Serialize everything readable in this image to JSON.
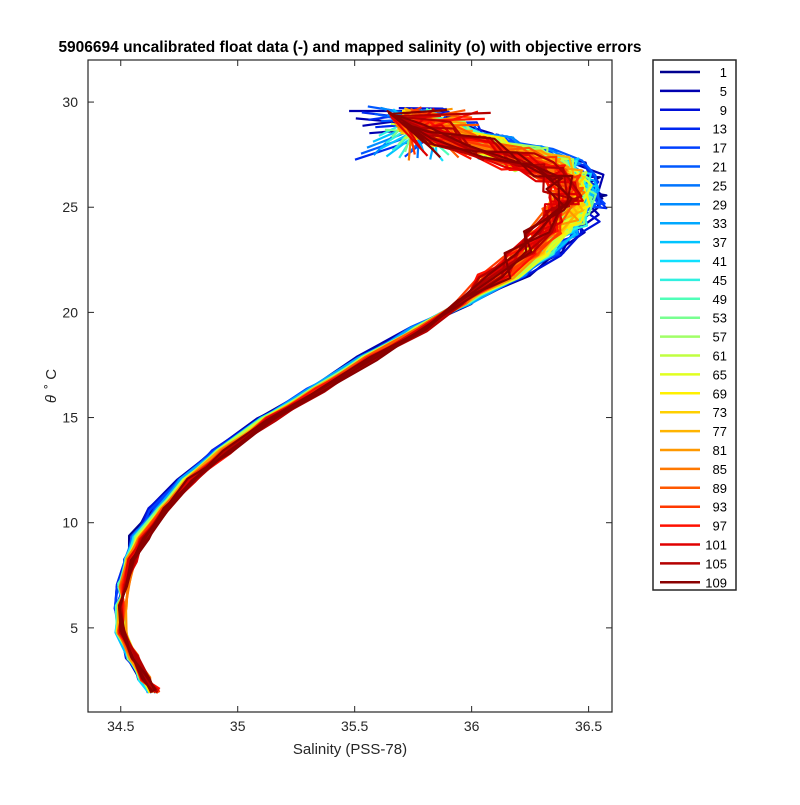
{
  "chart_data": {
    "type": "line",
    "title": "5906694 uncalibrated float data (-) and mapped salinity (o) with objective errors",
    "xlabel": "Salinity (PSS-78)",
    "ylabel_symbol": "θ",
    "ylabel_unit": "˚ C",
    "xlim": [
      34.36,
      36.6
    ],
    "ylim": [
      1.0,
      32.0
    ],
    "xticks": [
      34.5,
      35,
      35.5,
      36,
      36.5
    ],
    "yticks": [
      5,
      10,
      15,
      20,
      25,
      30
    ],
    "xtick_labels": [
      "34.5",
      "35",
      "35.5",
      "36",
      "36.5"
    ],
    "ytick_labels": [
      "5",
      "10",
      "15",
      "20",
      "25",
      "30"
    ],
    "grid": false,
    "legend_placement": "outside-right",
    "series": [
      {
        "name": "1",
        "color": "#00008F"
      },
      {
        "name": "5",
        "color": "#0000B0"
      },
      {
        "name": "9",
        "color": "#0010D8"
      },
      {
        "name": "13",
        "color": "#0028F0"
      },
      {
        "name": "17",
        "color": "#0040FF"
      },
      {
        "name": "21",
        "color": "#0058FF"
      },
      {
        "name": "25",
        "color": "#0074FF"
      },
      {
        "name": "29",
        "color": "#008CFF"
      },
      {
        "name": "33",
        "color": "#00A8FF"
      },
      {
        "name": "37",
        "color": "#00C4FF"
      },
      {
        "name": "41",
        "color": "#10E0FF"
      },
      {
        "name": "45",
        "color": "#30F0E0"
      },
      {
        "name": "49",
        "color": "#50FFB8"
      },
      {
        "name": "53",
        "color": "#78FF90"
      },
      {
        "name": "57",
        "color": "#A0FF68"
      },
      {
        "name": "61",
        "color": "#C0FF40"
      },
      {
        "name": "65",
        "color": "#E0FF20"
      },
      {
        "name": "69",
        "color": "#FFF000"
      },
      {
        "name": "73",
        "color": "#FFD000"
      },
      {
        "name": "77",
        "color": "#FFB400"
      },
      {
        "name": "81",
        "color": "#FF9800"
      },
      {
        "name": "85",
        "color": "#FF7800"
      },
      {
        "name": "89",
        "color": "#FF5800"
      },
      {
        "name": "93",
        "color": "#FF3800"
      },
      {
        "name": "97",
        "color": "#FF1000"
      },
      {
        "name": "101",
        "color": "#E00000"
      },
      {
        "name": "105",
        "color": "#B40000"
      },
      {
        "name": "109",
        "color": "#8A0000"
      }
    ]
  }
}
